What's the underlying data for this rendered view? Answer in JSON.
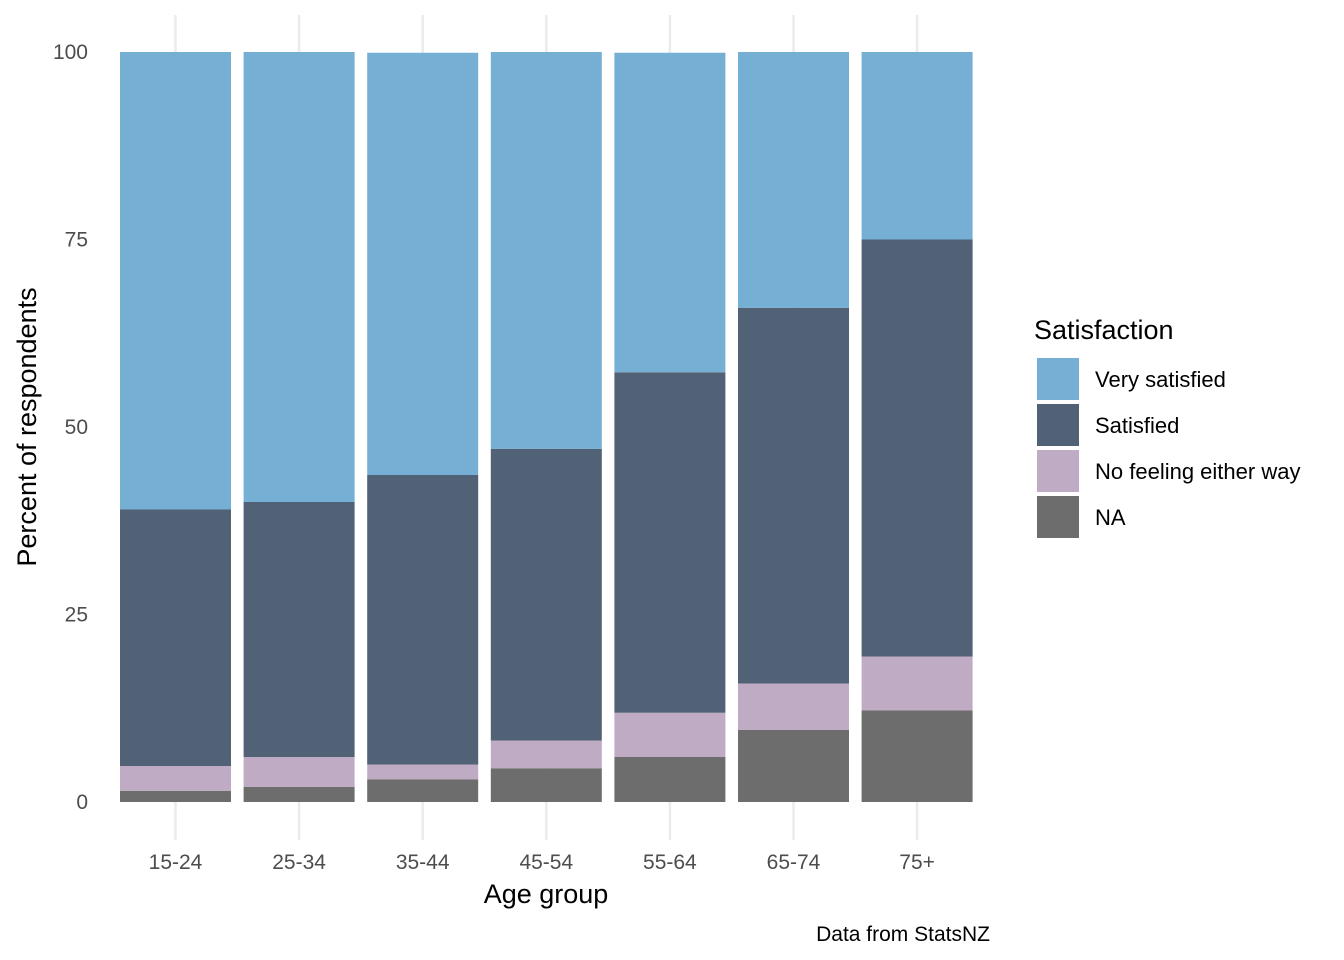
{
  "chart_data": {
    "type": "bar",
    "stacked": true,
    "xlabel": "Age group",
    "ylabel": "Percent of respondents",
    "caption": "Data from StatsNZ",
    "ylim": [
      0,
      100
    ],
    "yticks": [
      0,
      25,
      50,
      75,
      100
    ],
    "grid": "on",
    "legend_position": "right",
    "legend_title": "Satisfaction",
    "categories": [
      "15-24",
      "25-34",
      "35-44",
      "45-54",
      "55-64",
      "65-74",
      "75+"
    ],
    "series": [
      {
        "name": "NA",
        "color": "#6d6d6d",
        "values": [
          1.5,
          2.0,
          3.0,
          4.5,
          6.0,
          9.6,
          12.2
        ]
      },
      {
        "name": "No feeling either way",
        "color": "#c0abc4",
        "values": [
          3.3,
          4.0,
          2.0,
          3.7,
          5.9,
          6.2,
          7.2
        ]
      },
      {
        "name": "Satisfied",
        "color": "#516176",
        "values": [
          34.2,
          34.0,
          38.6,
          38.9,
          45.4,
          50.1,
          55.6
        ]
      },
      {
        "name": "Very satisfied",
        "color": "#75afd4",
        "values": [
          61.0,
          60.0,
          56.3,
          52.9,
          42.6,
          34.1,
          25.0
        ]
      }
    ],
    "legend_order": [
      "Very satisfied",
      "Satisfied",
      "No feeling either way",
      "NA"
    ]
  }
}
